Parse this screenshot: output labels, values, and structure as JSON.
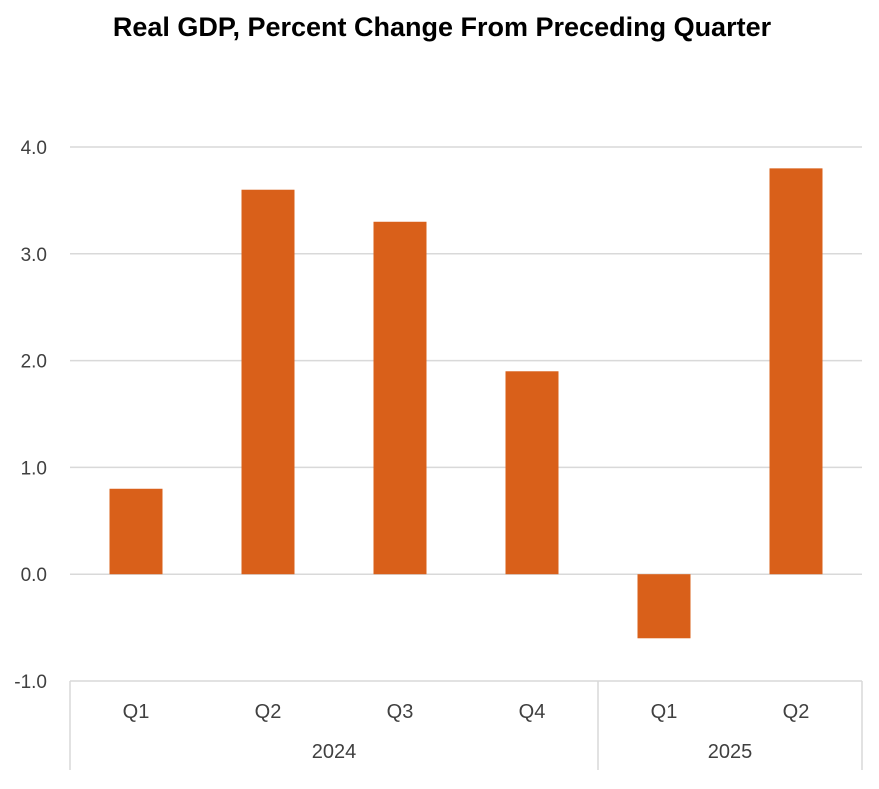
{
  "chart_data": {
    "type": "bar",
    "title": "Real GDP, Percent Change From Preceding Quarter",
    "categories": [
      "Q1",
      "Q2",
      "Q3",
      "Q4",
      "Q1",
      "Q2"
    ],
    "groups": [
      {
        "label": "2024",
        "count": 4
      },
      {
        "label": "2025",
        "count": 2
      }
    ],
    "values": [
      0.8,
      3.6,
      3.3,
      1.9,
      -0.6,
      3.8
    ],
    "ylim": [
      -1.0,
      4.0
    ],
    "yticks": [
      "-1.0",
      "0.0",
      "1.0",
      "2.0",
      "3.0",
      "4.0"
    ],
    "xlabel": "",
    "ylabel": "",
    "grid": true,
    "bar_color": "#D9601A",
    "grid_color": "#D9D9D9",
    "text_color": "#404040"
  }
}
